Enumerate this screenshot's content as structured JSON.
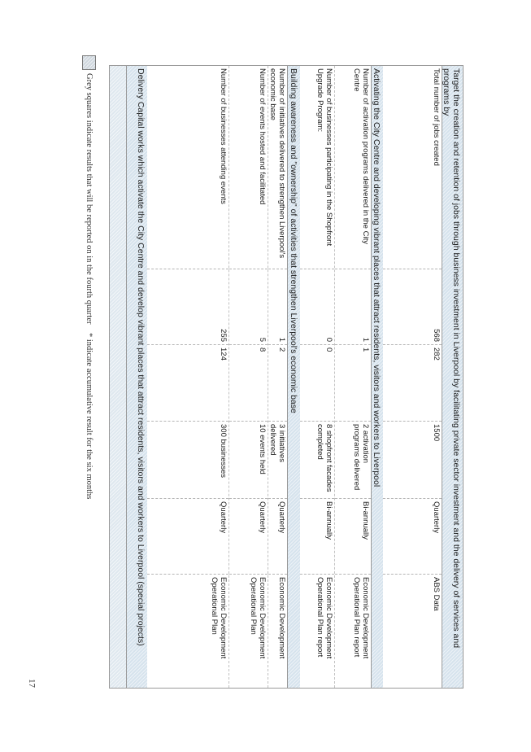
{
  "sections": [
    {
      "title": "Target the creation and retention of jobs through business investment in Liverpool by facilitating private sector investment and the delivery of services and programs by",
      "rows": [
        {
          "measure": "Total number of jobs created",
          "v1": "568",
          "v2": "282",
          "target": "1500",
          "frequency": "Quarterly",
          "source": "ABS Data"
        }
      ]
    },
    {
      "title": "Activating the City Centre and developing vibrant places that attract residents, visitors and workers to Liverpool",
      "rows": [
        {
          "measure": "Number of activation programs delivered in the City Centre",
          "v1": "1",
          "v2": "1",
          "target": "2 activation programs delivered",
          "frequency": "Bi-annually",
          "source": "Economic Development Operational Plan report"
        },
        {
          "measure": "Number of businesses participating in the Shopfront Upgrade Program:",
          "v1": "0",
          "v2": "0",
          "target": "8 shopfront facades completed",
          "frequency": "Bi-annually",
          "source": "Economic Development Operational Plan report"
        }
      ]
    },
    {
      "title": "Building awareness and \"ownership\" of activities that strengthen Liverpool's economic base",
      "rows": [
        {
          "measure": "Number of initiatives delivered to strengthen Liverpool's economic base",
          "v1": "1",
          "v2": "2",
          "target": "3 initiatives delivered",
          "frequency": "Quarterly",
          "source": "Economic Development"
        },
        {
          "measure": "Number of events hosted and facilitated",
          "v1": "5",
          "v2": "8",
          "target": "10 events held",
          "frequency": "Quarterly",
          "source": "Economic Development Operational Plan"
        },
        {
          "measure": "Number of businesses attending events",
          "v1": "255",
          "v2": "124",
          "target": "300 businesses",
          "frequency": "Quarterly",
          "source": "Economic Development Operational Plan"
        }
      ]
    },
    {
      "title": "Delivery Capital works which activate the City Centre and develop vibrant places that attract residents, visitors and workers to Liverpool (special projects)",
      "rows": []
    }
  ],
  "legend": {
    "grey_note": "Grey squares indicate results that will be reported on in the fourth quarter",
    "cumulative_note": "* indicate accumulative result for the six months"
  },
  "page_number": "17"
}
